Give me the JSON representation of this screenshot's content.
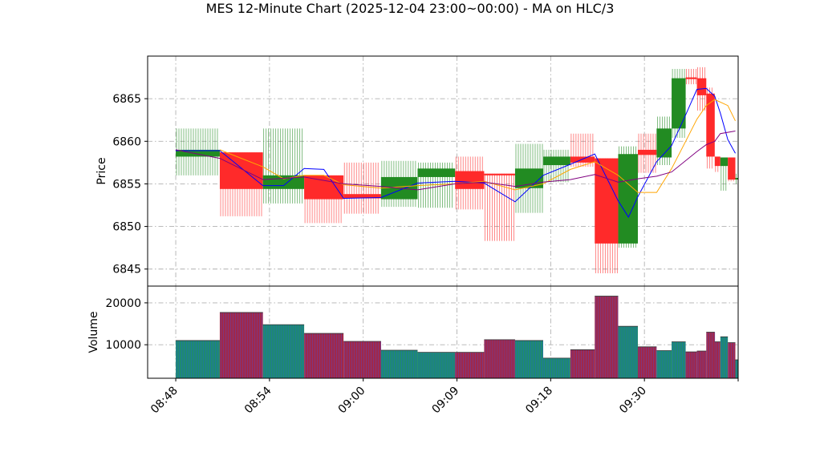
{
  "chart_data": {
    "type": "candlestick",
    "title": "MES 12-Minute Chart (2025-12-04 23:00~00:00) - MA on HLC/3",
    "price_panel": {
      "ylabel": "Price",
      "ylim": [
        6843,
        6870
      ],
      "yticks": [
        "6845",
        "6850",
        "6855",
        "6860",
        "6865"
      ],
      "grid": true
    },
    "volume_panel": {
      "ylabel": "Volume",
      "ylim": [
        2000,
        24000
      ],
      "yticks": [
        "10000",
        "20000"
      ],
      "grid": true
    },
    "x_range": [
      -3,
      60
    ],
    "xticks": [
      {
        "t": 0,
        "label": "08:48"
      },
      {
        "t": 10,
        "label": "08:54"
      },
      {
        "t": 20,
        "label": "09:00"
      },
      {
        "t": 30,
        "label": "09:09"
      },
      {
        "t": 40,
        "label": "09:18"
      },
      {
        "t": 50,
        "label": "09:30"
      },
      {
        "t": 60,
        "label": ""
      }
    ],
    "candles": [
      {
        "t0": 0.0,
        "t1": 4.7,
        "open": 6858.2,
        "close": 6859.0,
        "high": 6861.5,
        "low": 6856.0,
        "volume": 11000
      },
      {
        "t0": 4.7,
        "t1": 9.3,
        "open": 6858.7,
        "close": 6854.4,
        "high": 6858.7,
        "low": 6851.2,
        "volume": 17700
      },
      {
        "t0": 9.3,
        "t1": 13.7,
        "open": 6854.4,
        "close": 6856.0,
        "high": 6861.5,
        "low": 6852.7,
        "volume": 14800
      },
      {
        "t0": 13.7,
        "t1": 17.9,
        "open": 6856.0,
        "close": 6853.2,
        "high": 6856.0,
        "low": 6850.4,
        "volume": 12700
      },
      {
        "t0": 17.9,
        "t1": 21.9,
        "open": 6853.8,
        "close": 6853.3,
        "high": 6857.5,
        "low": 6851.5,
        "volume": 10800
      },
      {
        "t0": 21.9,
        "t1": 25.8,
        "open": 6853.2,
        "close": 6855.8,
        "high": 6857.7,
        "low": 6852.3,
        "volume": 8700
      },
      {
        "t0": 25.8,
        "t1": 29.8,
        "open": 6855.8,
        "close": 6856.8,
        "high": 6857.5,
        "low": 6852.2,
        "volume": 8200
      },
      {
        "t0": 29.8,
        "t1": 32.9,
        "open": 6856.5,
        "close": 6854.4,
        "high": 6858.2,
        "low": 6852.0,
        "volume": 8200
      },
      {
        "t0": 32.9,
        "t1": 36.2,
        "open": 6856.2,
        "close": 6856.0,
        "high": 6856.2,
        "low": 6848.3,
        "volume": 11200
      },
      {
        "t0": 36.2,
        "t1": 39.2,
        "open": 6854.5,
        "close": 6856.8,
        "high": 6859.7,
        "low": 6851.6,
        "volume": 11000
      },
      {
        "t0": 39.2,
        "t1": 42.1,
        "open": 6857.2,
        "close": 6858.2,
        "high": 6859.0,
        "low": 6855.2,
        "volume": 6800
      },
      {
        "t0": 42.1,
        "t1": 44.7,
        "open": 6858.2,
        "close": 6857.5,
        "high": 6860.9,
        "low": 6857.0,
        "volume": 8800
      },
      {
        "t0": 44.7,
        "t1": 47.2,
        "open": 6858.0,
        "close": 6848.0,
        "high": 6858.0,
        "low": 6844.5,
        "volume": 21600
      },
      {
        "t0": 47.2,
        "t1": 49.3,
        "open": 6848.0,
        "close": 6858.5,
        "high": 6859.4,
        "low": 6847.5,
        "volume": 14400
      },
      {
        "t0": 49.3,
        "t1": 51.3,
        "open": 6859.0,
        "close": 6858.4,
        "high": 6860.9,
        "low": 6856.3,
        "volume": 9500
      },
      {
        "t0": 51.3,
        "t1": 52.9,
        "open": 6858.1,
        "close": 6861.5,
        "high": 6862.9,
        "low": 6857.2,
        "volume": 8600
      },
      {
        "t0": 52.9,
        "t1": 54.4,
        "open": 6861.5,
        "close": 6867.4,
        "high": 6868.5,
        "low": 6860.4,
        "volume": 10700
      },
      {
        "t0": 54.4,
        "t1": 55.6,
        "open": 6867.5,
        "close": 6867.3,
        "high": 6868.5,
        "low": 6866.7,
        "volume": 8300
      },
      {
        "t0": 55.6,
        "t1": 56.6,
        "open": 6867.4,
        "close": 6865.4,
        "high": 6868.7,
        "low": 6863.6,
        "volume": 8500
      },
      {
        "t0": 56.6,
        "t1": 57.5,
        "open": 6865.6,
        "close": 6858.2,
        "high": 6866.3,
        "low": 6856.8,
        "volume": 13000
      },
      {
        "t0": 57.5,
        "t1": 58.1,
        "open": 6858.2,
        "close": 6857.1,
        "high": 6858.2,
        "low": 6856.4,
        "volume": 10700
      },
      {
        "t0": 58.1,
        "t1": 58.9,
        "open": 6857.1,
        "close": 6858.1,
        "high": 6858.1,
        "low": 6854.2,
        "volume": 11900
      },
      {
        "t0": 58.9,
        "t1": 59.7,
        "open": 6858.1,
        "close": 6855.5,
        "high": 6858.1,
        "low": 6855.3,
        "volume": 10500
      },
      {
        "t0": 59.7,
        "t1": 60.0,
        "open": 6855.7,
        "close": 6855.7,
        "high": 6856.2,
        "low": 6855.0,
        "volume": 6400
      }
    ],
    "series": [
      {
        "color": "#0000ff",
        "points": [
          [
            0,
            6858.9
          ],
          [
            4.7,
            6858.9
          ],
          [
            9.3,
            6854.8
          ],
          [
            11.5,
            6854.8
          ],
          [
            13.7,
            6856.8
          ],
          [
            15.8,
            6856.7
          ],
          [
            17.9,
            6853.3
          ],
          [
            21.9,
            6853.4
          ],
          [
            25.8,
            6855.1
          ],
          [
            29.8,
            6855.3
          ],
          [
            32.9,
            6855.1
          ],
          [
            36.2,
            6852.9
          ],
          [
            39.2,
            6856.0
          ],
          [
            42.1,
            6857.3
          ],
          [
            44.7,
            6858.5
          ],
          [
            47.2,
            6853.0
          ],
          [
            48.3,
            6851.1
          ],
          [
            49.3,
            6853.5
          ],
          [
            51.3,
            6857.6
          ],
          [
            52.9,
            6859.5
          ],
          [
            54.4,
            6863.1
          ],
          [
            55.6,
            6866.1
          ],
          [
            56.6,
            6866.2
          ],
          [
            57.5,
            6865.3
          ],
          [
            58.1,
            6863.3
          ],
          [
            58.9,
            6860.2
          ],
          [
            59.7,
            6858.6
          ]
        ]
      },
      {
        "color": "#ffa500",
        "points": [
          [
            4.7,
            6859.0
          ],
          [
            7.0,
            6858.0
          ],
          [
            9.3,
            6857.0
          ],
          [
            11.5,
            6855.6
          ],
          [
            13.7,
            6856.0
          ],
          [
            15.8,
            6856.0
          ],
          [
            17.9,
            6854.9
          ],
          [
            21.9,
            6854.5
          ],
          [
            25.8,
            6854.8
          ],
          [
            29.8,
            6855.0
          ],
          [
            32.9,
            6855.3
          ],
          [
            36.2,
            6854.3
          ],
          [
            39.2,
            6855.0
          ],
          [
            42.1,
            6856.7
          ],
          [
            44.7,
            6857.6
          ],
          [
            47.2,
            6856.0
          ],
          [
            49.3,
            6854.0
          ],
          [
            51.3,
            6854.0
          ],
          [
            52.9,
            6856.8
          ],
          [
            54.4,
            6860.0
          ],
          [
            55.6,
            6862.6
          ],
          [
            56.6,
            6864.2
          ],
          [
            57.5,
            6864.9
          ],
          [
            58.9,
            6864.2
          ],
          [
            59.7,
            6862.4
          ]
        ]
      },
      {
        "color": "#800080",
        "points": [
          [
            0,
            6859.0
          ],
          [
            4.7,
            6858.0
          ],
          [
            9.3,
            6855.5
          ],
          [
            13.7,
            6855.8
          ],
          [
            17.9,
            6855.0
          ],
          [
            21.9,
            6854.7
          ],
          [
            25.8,
            6854.3
          ],
          [
            29.8,
            6855.0
          ],
          [
            32.9,
            6855.2
          ],
          [
            36.2,
            6854.7
          ],
          [
            39.2,
            6855.2
          ],
          [
            42.1,
            6855.5
          ],
          [
            44.7,
            6856.1
          ],
          [
            47.2,
            6855.2
          ],
          [
            49.3,
            6855.6
          ],
          [
            51.3,
            6855.9
          ],
          [
            52.9,
            6856.4
          ],
          [
            55.6,
            6858.8
          ],
          [
            56.6,
            6859.6
          ],
          [
            57.5,
            6860.0
          ],
          [
            58.1,
            6860.9
          ],
          [
            59.7,
            6861.2
          ]
        ]
      }
    ]
  }
}
